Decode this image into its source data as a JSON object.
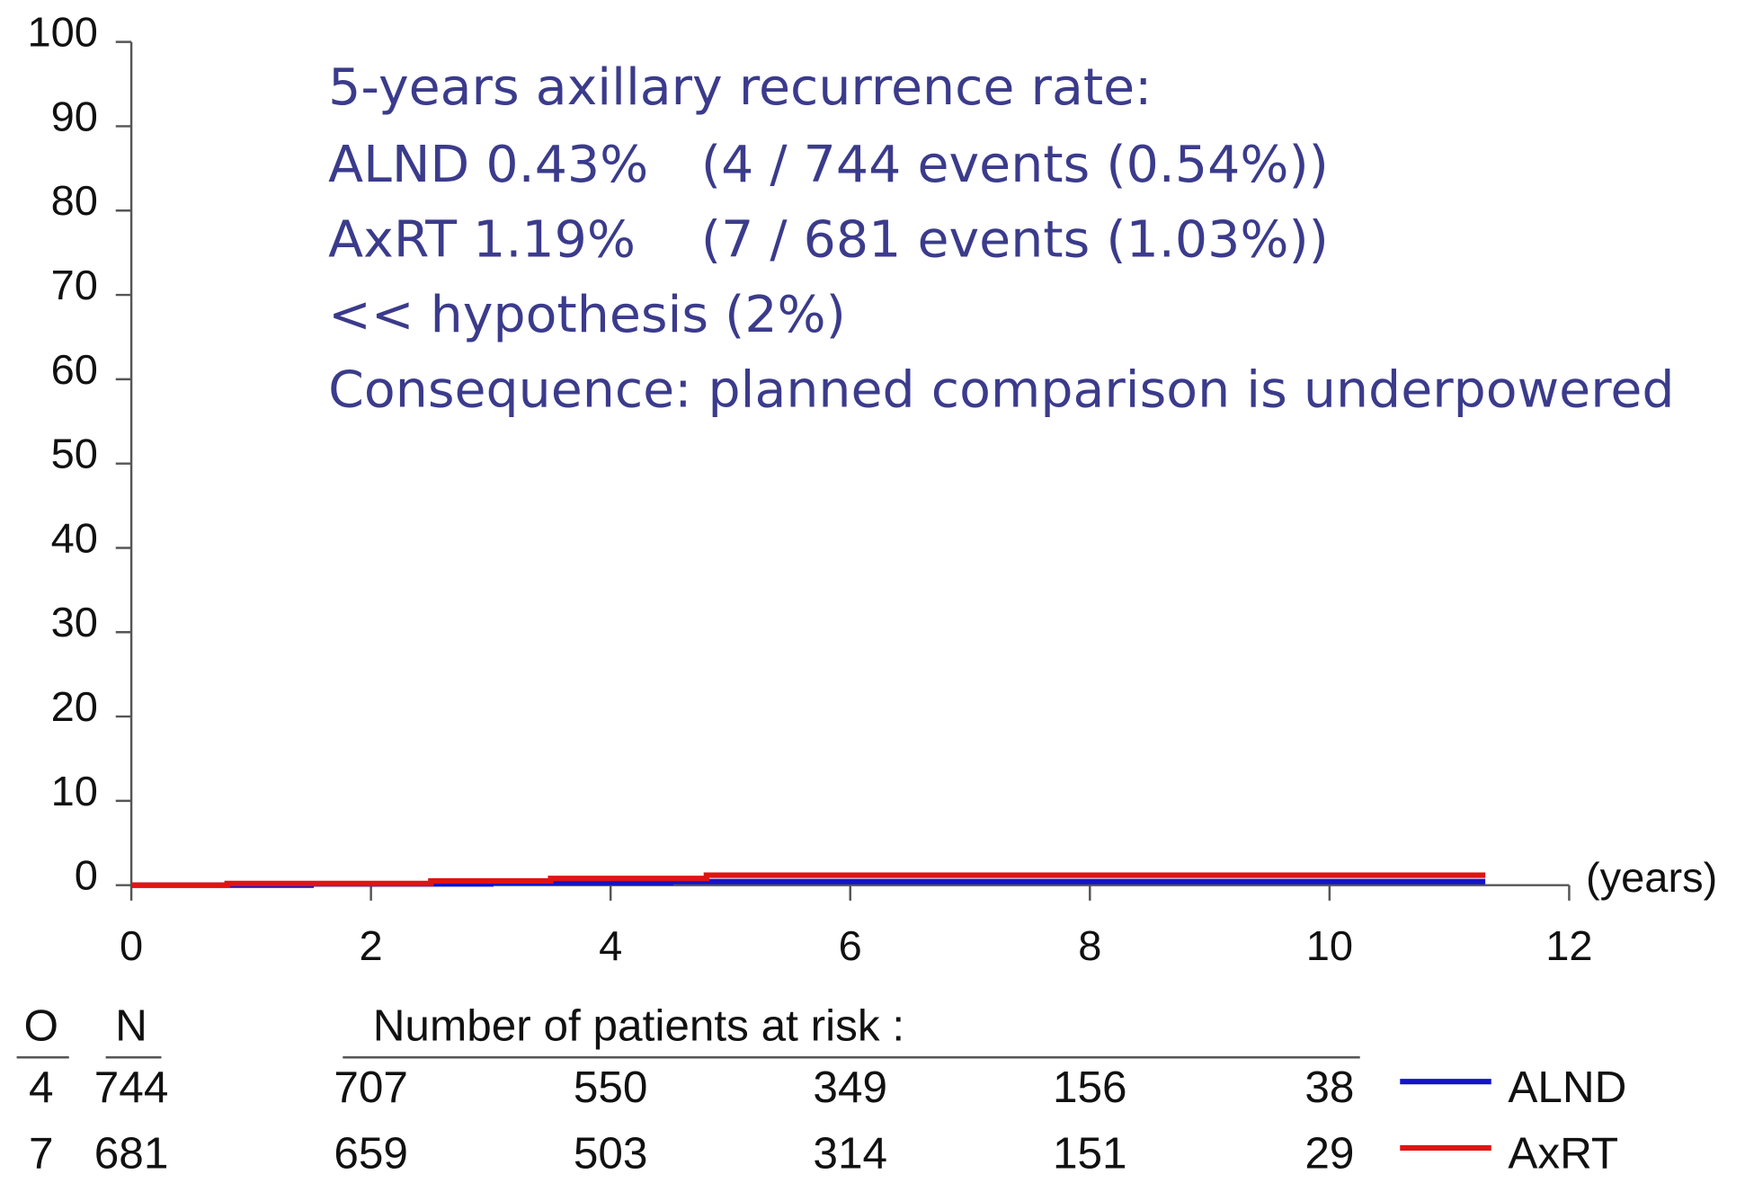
{
  "chart_data": {
    "type": "line",
    "step": true,
    "xlim": [
      0,
      12
    ],
    "xticks": [
      0,
      2,
      4,
      6,
      8,
      10,
      12
    ],
    "ylim": [
      0,
      100
    ],
    "yticks": [
      0,
      10,
      20,
      30,
      40,
      50,
      60,
      70,
      80,
      90,
      100
    ],
    "x_label": "(years)",
    "annotations": [
      "5-years axillary recurrence rate:",
      "ALND 0.43%",
      "(4 / 744 events (0.54%))",
      "AxRT 1.19%",
      "(7 / 681 events (1.03%))",
      "<< hypothesis (2%)",
      "Consequence: planned comparison is underpowered"
    ],
    "series": [
      {
        "name": "ALND",
        "color": "#1414c8",
        "x": [
          0,
          1.5,
          3,
          4.5,
          6,
          11.3
        ],
        "values": [
          0,
          0.15,
          0.3,
          0.43,
          0.43,
          0.43
        ]
      },
      {
        "name": "AxRT",
        "color": "#e01414",
        "x": [
          0,
          0.8,
          2.5,
          3.5,
          4.8,
          11.3
        ],
        "values": [
          0,
          0.2,
          0.5,
          0.8,
          1.19,
          1.19
        ]
      }
    ],
    "risk_table": {
      "headers": [
        "O",
        "N",
        "Number of patients at risk :"
      ],
      "rows": [
        {
          "O": 4,
          "N": 744,
          "at_risk": [
            707,
            550,
            349,
            156,
            38
          ]
        },
        {
          "O": 7,
          "N": 681,
          "at_risk": [
            659,
            503,
            314,
            151,
            29
          ]
        }
      ]
    }
  }
}
